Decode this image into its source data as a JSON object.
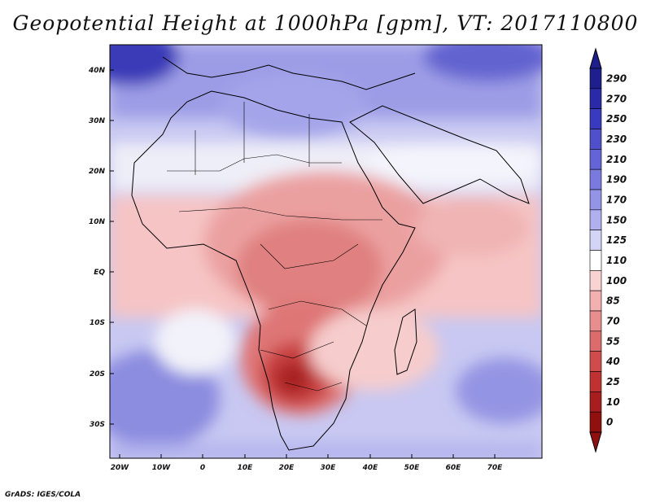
{
  "title": "Geopotential Height at 1000hPa [gpm], VT: 2017110800",
  "credit": "GrADS: IGES/COLA",
  "map": {
    "lon_labels": [
      "20W",
      "10W",
      "0",
      "10E",
      "20E",
      "30E",
      "40E",
      "50E",
      "60E",
      "70E"
    ],
    "lat_labels": [
      "40N",
      "30N",
      "20N",
      "10N",
      "EQ",
      "10S",
      "20S",
      "30S"
    ]
  },
  "colorbar": {
    "levels": [
      "290",
      "270",
      "250",
      "230",
      "210",
      "190",
      "170",
      "150",
      "125",
      "110",
      "100",
      "85",
      "70",
      "55",
      "40",
      "25",
      "10",
      "0"
    ],
    "colors": [
      "#1e1e8c",
      "#2a2aa8",
      "#3a3ac0",
      "#5050cc",
      "#6464d6",
      "#7a7ade",
      "#9494e6",
      "#b0b0ee",
      "#d4d4f6",
      "#ffffff",
      "#f9d2d2",
      "#f2b0b0",
      "#e88e8e",
      "#dc6c6c",
      "#d04c4c",
      "#c03232",
      "#a81e1e",
      "#901010"
    ]
  }
}
